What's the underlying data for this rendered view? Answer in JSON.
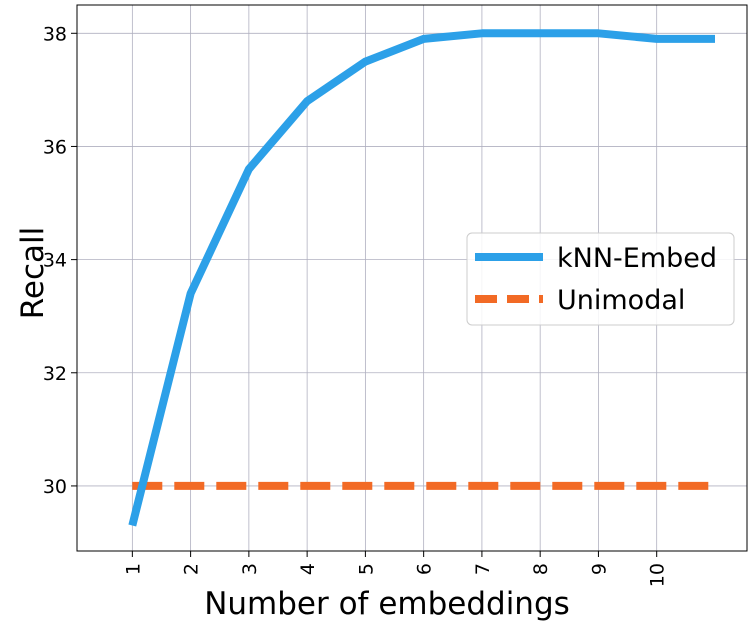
{
  "chart_data": {
    "type": "line",
    "xlabel": "Number of embeddings",
    "ylabel": "Recall",
    "x": [
      1,
      2,
      3,
      4,
      5,
      6,
      7,
      8,
      9,
      10,
      11
    ],
    "x_tick_labels": [
      "1",
      "2",
      "3",
      "4",
      "5",
      "6",
      "7",
      "8",
      "9",
      "10"
    ],
    "y_ticks": [
      30,
      32,
      34,
      36,
      38
    ],
    "y_tick_labels": [
      "30",
      "32",
      "34",
      "36",
      "38"
    ],
    "xlim": [
      0.05,
      11.55
    ],
    "ylim": [
      28.85,
      38.5
    ],
    "grid": true,
    "legend_position": "center-right",
    "series": [
      {
        "name": "kNN-Embed",
        "color": "#2ca0e8",
        "style": "solid",
        "values": [
          29.3,
          33.4,
          35.6,
          36.8,
          37.5,
          37.9,
          38.0,
          38.0,
          38.0,
          37.9,
          37.9
        ]
      },
      {
        "name": "Unimodal",
        "color": "#f26a25",
        "style": "dashed",
        "values": [
          30.0,
          30.0,
          30.0,
          30.0,
          30.0,
          30.0,
          30.0,
          30.0,
          30.0,
          30.0,
          30.0
        ]
      }
    ]
  }
}
